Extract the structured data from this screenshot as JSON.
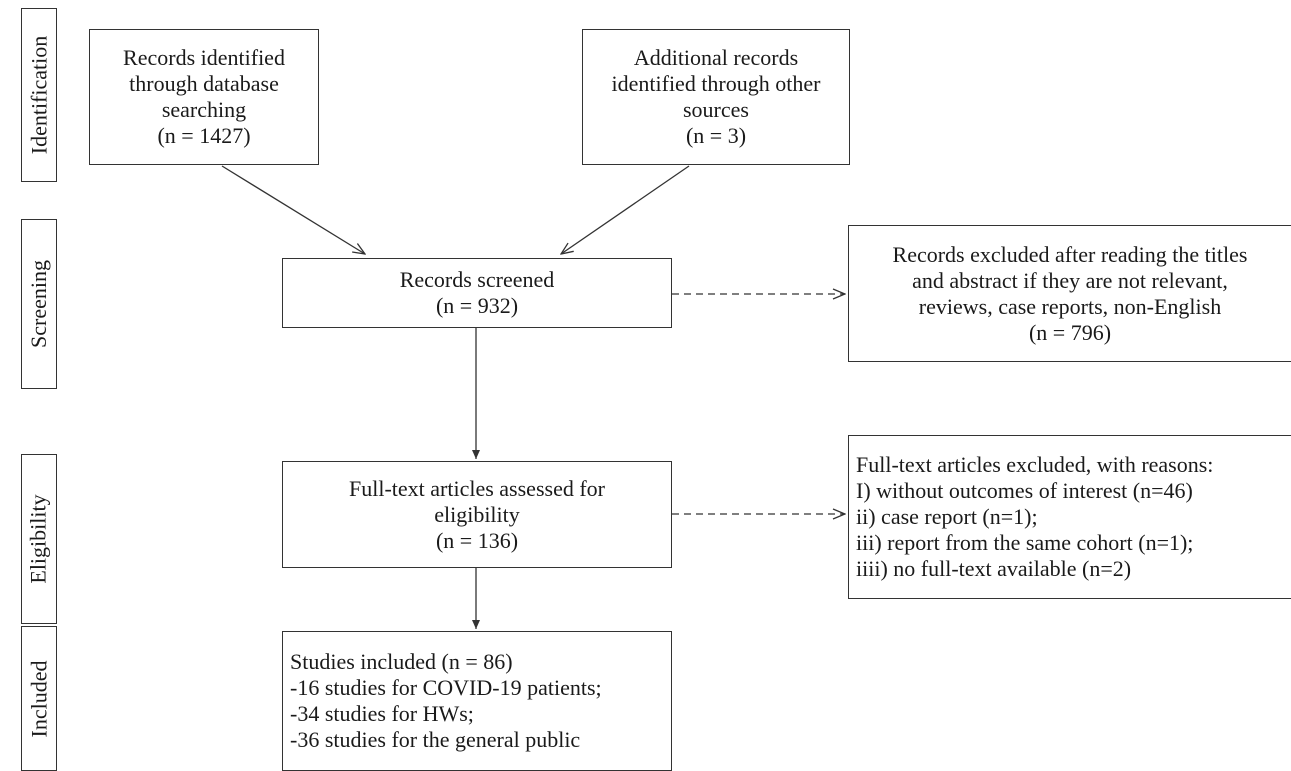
{
  "stages": {
    "identification": "Identification",
    "screening": "Screening",
    "eligibility": "Eligibility",
    "included": "Included"
  },
  "boxes": {
    "database_records": {
      "lines": [
        "Records identified",
        "through database",
        "searching",
        "(n = 1427)"
      ]
    },
    "other_records": {
      "lines": [
        "Additional records",
        "identified through other",
        "sources",
        "(n = 3)"
      ]
    },
    "screened": {
      "lines": [
        "Records screened",
        "(n = 932)"
      ]
    },
    "excluded_screening": {
      "lines": [
        "Records excluded after reading the titles",
        "and abstract if they are not relevant,",
        "reviews, case reports, non-English",
        "(n = 796)"
      ]
    },
    "fulltext_assessed": {
      "lines": [
        "Full-text articles assessed for",
        "eligibility",
        "(n = 136)"
      ]
    },
    "fulltext_excluded": {
      "lines": [
        "Full-text articles excluded, with reasons:",
        "I) without outcomes of interest (n=46)",
        "ii) case report (n=1);",
        "iii) report from the same cohort (n=1);",
        "iiii) no full-text available (n=2)"
      ]
    },
    "included": {
      "lines": [
        "Studies included (n = 86)",
        "-16 studies for COVID-19 patients;",
        "-34 studies for HWs;",
        "-36 studies for the general public"
      ]
    }
  }
}
